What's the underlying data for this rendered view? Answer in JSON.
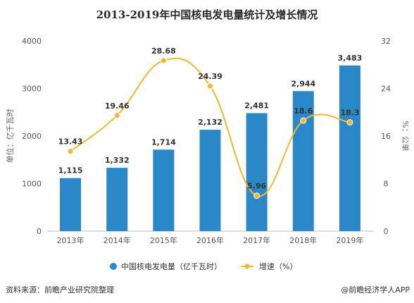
{
  "chart_data": {
    "type": "bar",
    "title": "2013-2019年中国核电发电量统计及增长情况",
    "categories": [
      "2013年",
      "2014年",
      "2015年",
      "2016年",
      "2017年",
      "2018年",
      "2019年"
    ],
    "series": [
      {
        "name": "中国核电发电量（亿千瓦时）",
        "type": "bar",
        "axis": "left",
        "values": [
          1115,
          1332,
          1714,
          2132,
          2481,
          2944,
          3483
        ],
        "labels": [
          "1,115",
          "1,332",
          "1,714",
          "2,132",
          "2,481",
          "2,944",
          "3,483"
        ],
        "color": "#2b88c8"
      },
      {
        "name": "增速（%）",
        "type": "line",
        "axis": "right",
        "values": [
          13.43,
          19.46,
          28.68,
          24.39,
          5.96,
          18.6,
          18.3
        ],
        "labels": [
          "13.43",
          "19.46",
          "28.68",
          "24.39",
          "5.96",
          "18.6",
          "18.3"
        ],
        "color": "#f0b82e"
      }
    ],
    "ylabel": "单位：亿千瓦时",
    "y2label": "%：公单",
    "ylim": [
      0,
      4000
    ],
    "y2lim": [
      0,
      32
    ],
    "yticks": [
      "0",
      "1000",
      "2000",
      "3000",
      "4000"
    ],
    "y2ticks": [
      "0",
      "8",
      "16",
      "24",
      "32"
    ],
    "grid": false,
    "legend": "bottom"
  },
  "footer": {
    "source": "资料来源：前瞻产业研究院整理",
    "brand": "@前瞻经济学人APP"
  }
}
